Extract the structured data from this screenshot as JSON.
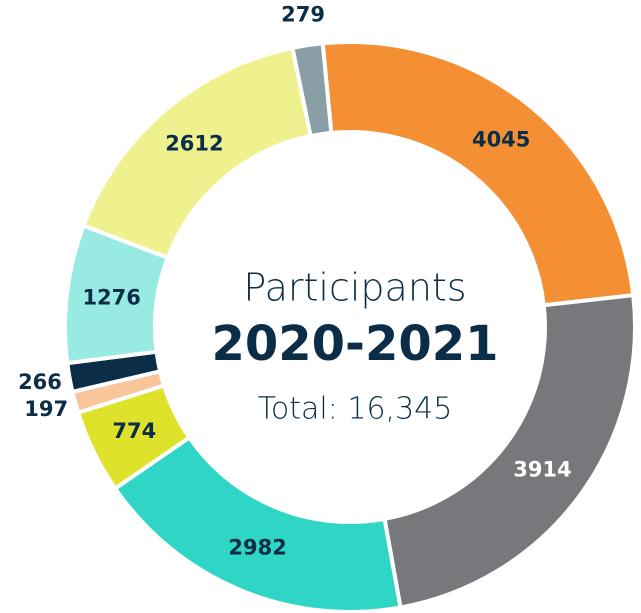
{
  "chart_data": {
    "type": "donut",
    "title": "Participants",
    "subtitle": "2020-2021",
    "annotation": "Total: 16,345",
    "categories": [
      null,
      null,
      null,
      null,
      null,
      null,
      null,
      null,
      null
    ],
    "values": [
      4045,
      3914,
      2982,
      774,
      197,
      266,
      1276,
      2612,
      279
    ],
    "colors": [
      "#f48f33",
      "#77787b",
      "#2fd5c5",
      "#dfe22a",
      "#fbc59a",
      "#0c2d48",
      "#98ebe3",
      "#eff18e",
      "#8a9ea6"
    ]
  }
}
